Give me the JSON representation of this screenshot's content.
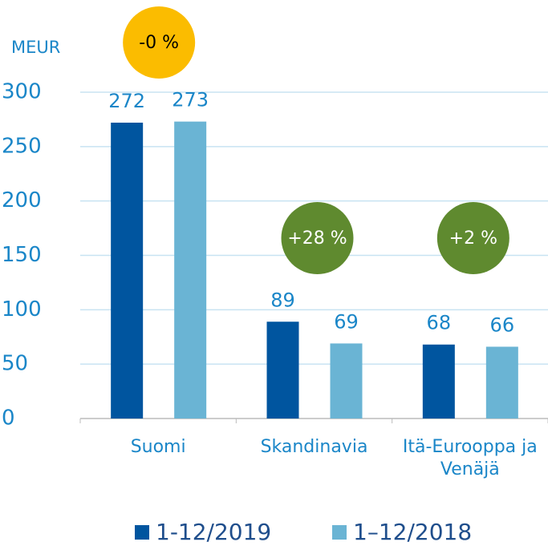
{
  "chart_data": {
    "type": "bar",
    "y_label": "MEUR",
    "categories": [
      "Suomi",
      "Skandinavia",
      "Itä-Eurooppa ja Venäjä"
    ],
    "series": [
      {
        "name": "1-12/2019",
        "color": "#00559f",
        "values": [
          272,
          89,
          68
        ]
      },
      {
        "name": "1–12/2018",
        "color": "#6ab4d4",
        "values": [
          273,
          69,
          66
        ]
      }
    ],
    "ylim": [
      0,
      300
    ],
    "yticks": [
      0,
      50,
      100,
      150,
      200,
      250,
      300
    ],
    "grid": true,
    "annotations": [
      {
        "text": "-0 %",
        "color": "#fbbc00"
      },
      {
        "text": "+28 %",
        "color": "#5f8a2f"
      },
      {
        "text": "+2 %",
        "color": "#5f8a2f"
      }
    ]
  }
}
